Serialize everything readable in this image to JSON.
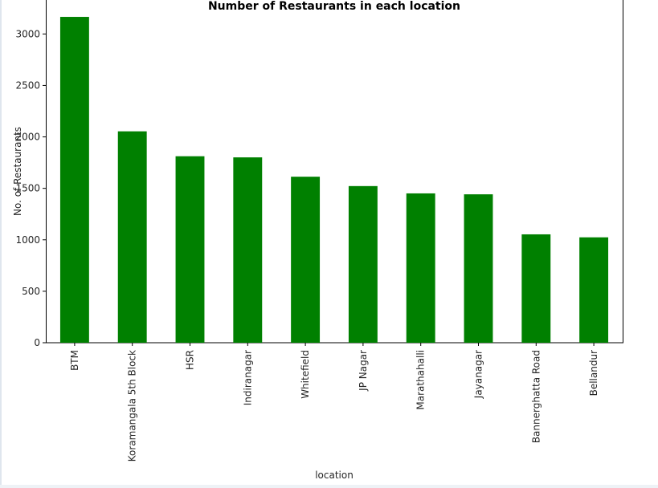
{
  "chart_data": {
    "type": "bar",
    "title": "Number of Restaurants in each location",
    "xlabel": "location",
    "ylabel": "No. of Restaurants",
    "categories": [
      "BTM",
      "Koramangala 5th Block",
      "HSR",
      "Indiranagar",
      "Whitefield",
      "JP Nagar",
      "Marathahalli",
      "Jayanagar",
      "Bannerghatta Road",
      "Bellandur"
    ],
    "values": [
      3166,
      2054,
      1812,
      1801,
      1613,
      1522,
      1451,
      1442,
      1053,
      1024
    ],
    "yticks": [
      0,
      500,
      1000,
      1500,
      2000,
      2500,
      3000
    ],
    "ylim": [
      0,
      3330
    ],
    "bar_color": "#008000",
    "grid": false,
    "legend": "none"
  }
}
